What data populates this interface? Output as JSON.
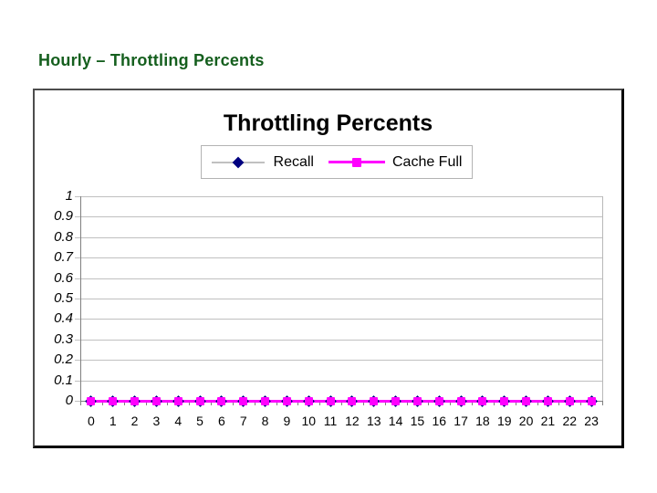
{
  "page": {
    "heading": "Hourly – Throttling Percents"
  },
  "colors": {
    "heading_green": "#155f1e",
    "title_black": "#000000",
    "gridline": "#c0c0c0",
    "axis": "#808080",
    "plot_right_border": "#b8b8b8",
    "legend_border": "#b3b3b3",
    "recall_marker": "#000080",
    "recall_line": "#c0c0c0",
    "cache_full": "#ff00ff"
  },
  "chart_data": {
    "type": "line",
    "title": "Throttling Percents",
    "x": [
      0,
      1,
      2,
      3,
      4,
      5,
      6,
      7,
      8,
      9,
      10,
      11,
      12,
      13,
      14,
      15,
      16,
      17,
      18,
      19,
      20,
      21,
      22,
      23
    ],
    "series": [
      {
        "name": "Recall",
        "marker": "diamond",
        "marker_color": "#000080",
        "line_color": "#c0c0c0",
        "values": [
          0,
          0,
          0,
          0,
          0,
          0,
          0,
          0,
          0,
          0,
          0,
          0,
          0,
          0,
          0,
          0,
          0,
          0,
          0,
          0,
          0,
          0,
          0,
          0
        ]
      },
      {
        "name": "Cache Full",
        "marker": "square",
        "marker_color": "#ff00ff",
        "line_color": "#ff00ff",
        "values": [
          0,
          0,
          0,
          0,
          0,
          0,
          0,
          0,
          0,
          0,
          0,
          0,
          0,
          0,
          0,
          0,
          0,
          0,
          0,
          0,
          0,
          0,
          0,
          0
        ]
      }
    ],
    "ylim": [
      0,
      1
    ],
    "ytick_labels_top_to_bottom": [
      "1",
      "0.9",
      "0.8",
      "0.7",
      "0.6",
      "0.5",
      "0.4",
      "0.3",
      "0.2",
      "0.1",
      "0"
    ],
    "grid": true,
    "legend_position": "top-center"
  }
}
